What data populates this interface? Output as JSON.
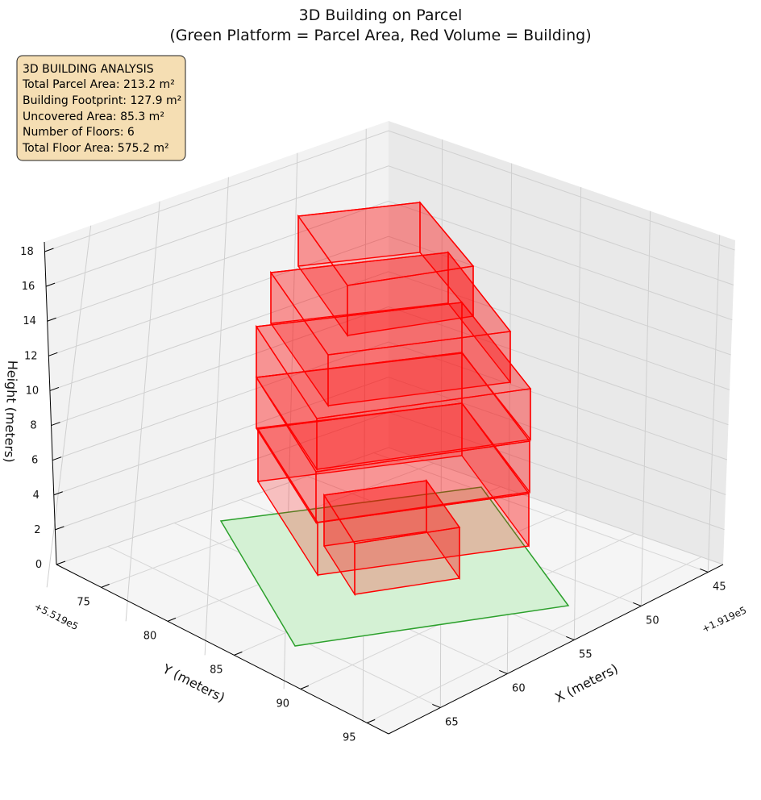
{
  "chart_data": {
    "type": "3d-polygons",
    "title": "3D Building on Parcel",
    "subtitle": "(Green Platform = Parcel Area, Red Volume = Building)",
    "xlabel": "X (meters)",
    "ylabel": "Y (meters)",
    "zlabel": "Height (meters)",
    "x_offset_label": "+1.919e5",
    "y_offset_label": "+5.519e5",
    "x_ticks": [
      "45",
      "50",
      "55",
      "60",
      "65"
    ],
    "y_ticks": [
      "75",
      "80",
      "85",
      "90",
      "95"
    ],
    "z_ticks": [
      "0",
      "2",
      "4",
      "6",
      "8",
      "10",
      "12",
      "14",
      "16",
      "18"
    ],
    "grid": true,
    "info_box": {
      "lines": [
        "3D BUILDING ANALYSIS",
        "Total Parcel Area: 213.2 m²",
        "Building Footprint: 127.9 m²",
        "Uncovered Area: 85.3 m²",
        "Number of Floors: 6",
        "Total Floor Area: 575.2 m²"
      ]
    },
    "parcel": {
      "color": "#2ca02c",
      "fill": "#d4f1d4"
    },
    "building_color": "#ff0000"
  }
}
